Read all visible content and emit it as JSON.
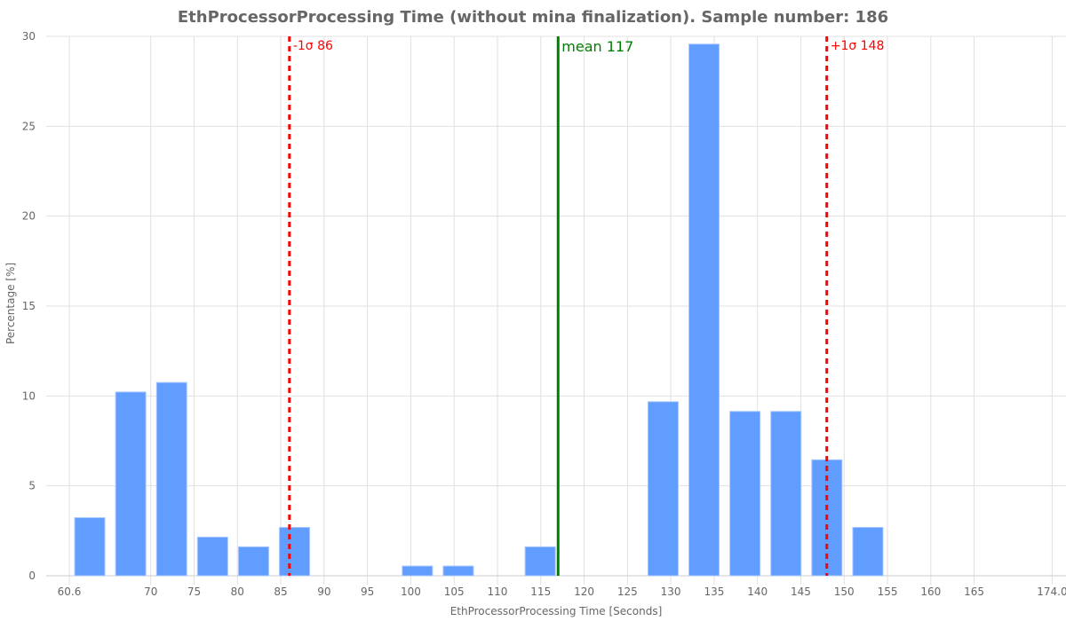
{
  "chart_data": {
    "type": "bar",
    "title": "EthProcessorProcessing Time (without mina finalization). Sample number: 186",
    "xlabel": "EthProcessorProcessing Time [Seconds]",
    "ylabel": "Percentage [%]",
    "ylim": [
      0,
      30
    ],
    "xlim": [
      60.6,
      174.0
    ],
    "grid": true,
    "bin_start": 60.6,
    "bin_end": 174.0,
    "values": [
      3.23,
      10.22,
      10.75,
      2.15,
      1.61,
      2.69,
      0,
      0,
      0.54,
      0.54,
      0,
      1.61,
      0,
      0,
      9.68,
      29.57,
      9.14,
      9.14,
      6.45,
      2.69,
      0,
      0,
      0,
      0
    ],
    "x_ticks": [
      {
        "value": 60.6,
        "label": "60.6"
      },
      {
        "value": 70,
        "label": "70"
      },
      {
        "value": 75,
        "label": "75"
      },
      {
        "value": 80,
        "label": "80"
      },
      {
        "value": 85,
        "label": "85"
      },
      {
        "value": 90,
        "label": "90"
      },
      {
        "value": 95,
        "label": "95"
      },
      {
        "value": 100,
        "label": "100"
      },
      {
        "value": 105,
        "label": "105"
      },
      {
        "value": 110,
        "label": "110"
      },
      {
        "value": 115,
        "label": "115"
      },
      {
        "value": 120,
        "label": "120"
      },
      {
        "value": 125,
        "label": "125"
      },
      {
        "value": 130,
        "label": "130"
      },
      {
        "value": 135,
        "label": "135"
      },
      {
        "value": 140,
        "label": "140"
      },
      {
        "value": 145,
        "label": "145"
      },
      {
        "value": 150,
        "label": "150"
      },
      {
        "value": 155,
        "label": "155"
      },
      {
        "value": 160,
        "label": "160"
      },
      {
        "value": 165,
        "label": "165"
      },
      {
        "value": 174.0,
        "label": "174.0"
      }
    ],
    "y_ticks": [
      0,
      5,
      10,
      15,
      20,
      25,
      30
    ],
    "annotations": [
      {
        "value": 86,
        "label": "-1σ 86",
        "color": "#ff0000",
        "style": "dashed"
      },
      {
        "value": 117,
        "label": "mean 117",
        "color": "#008000",
        "style": "solid"
      },
      {
        "value": 148,
        "label": "+1σ 148",
        "color": "#ff0000",
        "style": "dashed"
      }
    ],
    "colors": {
      "bar": "#619cff",
      "grid": "#e0e0e0",
      "text": "#666666"
    }
  }
}
